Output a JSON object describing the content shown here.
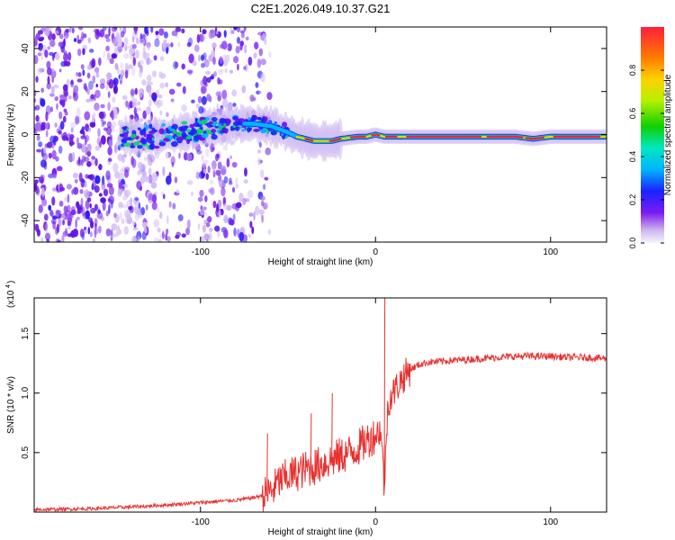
{
  "title": "C2E1.2026.049.10.37.G21",
  "chart_data": [
    {
      "type": "heatmap",
      "title": "C2E1.2026.049.10.37.G21",
      "xlabel": "Height of straight line (km)",
      "ylabel": "Frequency (Hz)",
      "xlim": [
        -195,
        132
      ],
      "ylim": [
        -50,
        50
      ],
      "xticks": [
        -100,
        0,
        100
      ],
      "yticks": [
        -40,
        -20,
        0,
        20,
        40
      ],
      "xtick_labels": [
        "-100",
        "0",
        "100"
      ],
      "ytick_labels": [
        "-40",
        "-20",
        "0",
        "20",
        "40"
      ],
      "ridge": {
        "description": "frequency ridge (Hz) versus height (km)",
        "x": [
          -140,
          -125,
          -110,
          -95,
          -80,
          -70,
          -60,
          -50,
          -45,
          -40,
          -35,
          -30,
          -25,
          -20,
          -10,
          -5,
          0,
          5,
          10,
          20,
          40,
          60,
          80,
          90,
          100,
          120,
          132
        ],
        "y": [
          -1,
          -1,
          1,
          3,
          5,
          5,
          4,
          1,
          -1,
          -2,
          -3,
          -3,
          -3,
          -2,
          -1,
          -1,
          0,
          -1,
          -1,
          -1,
          -1,
          -1,
          -1,
          -2,
          -1,
          -1,
          -1
        ]
      },
      "colorbar": {
        "label": "Normalized spectral amplitude",
        "range": [
          0,
          1
        ],
        "ticks": [
          0,
          0.2,
          0.4,
          0.6,
          0.8
        ],
        "tick_labels": [
          "0.0",
          "0.2",
          "0.4",
          "0.6",
          "0.8"
        ]
      }
    },
    {
      "type": "line",
      "xlabel": "Height of straight line (km)",
      "ylabel": "SNR (10 * v/v)",
      "scale_label": "(x10",
      "scale_exp": "4",
      "scale_close": ")",
      "xlim": [
        -195,
        132
      ],
      "ylim": [
        0,
        1.8
      ],
      "xticks": [
        -100,
        0,
        100
      ],
      "yticks": [
        0.5,
        1.0,
        1.5
      ],
      "xtick_labels": [
        "-100",
        "0",
        "100"
      ],
      "ytick_labels": [
        "0.5",
        "1.0",
        "1.5"
      ],
      "color": "#e8312f",
      "series": [
        {
          "name": "SNR",
          "x": [
            -195,
            -160,
            -130,
            -110,
            -100,
            -90,
            -80,
            -70,
            -62,
            -58,
            -55,
            -50,
            -45,
            -40,
            -35,
            -30,
            -25,
            -20,
            -15,
            -10,
            -5,
            0,
            3,
            5,
            7,
            8,
            10,
            12,
            15,
            20,
            25,
            30,
            40,
            50,
            60,
            70,
            80,
            90,
            100,
            110,
            120,
            132
          ],
          "y": [
            0.02,
            0.03,
            0.05,
            0.07,
            0.08,
            0.09,
            0.1,
            0.12,
            0.15,
            0.2,
            0.26,
            0.3,
            0.33,
            0.36,
            0.38,
            0.41,
            0.44,
            0.47,
            0.5,
            0.54,
            0.6,
            0.65,
            0.7,
            0.2,
            0.9,
            0.95,
            1.0,
            1.05,
            1.12,
            1.2,
            1.24,
            1.26,
            1.27,
            1.28,
            1.29,
            1.3,
            1.31,
            1.31,
            1.31,
            1.3,
            1.3,
            1.29
          ]
        }
      ],
      "spikes": [
        {
          "x": -62,
          "y": 0.66
        },
        {
          "x": -37,
          "y": 0.83
        },
        {
          "x": -25,
          "y": 1.0
        },
        {
          "x": 5,
          "y": 1.8
        },
        {
          "x": 10,
          "y": 1.1
        }
      ]
    }
  ]
}
